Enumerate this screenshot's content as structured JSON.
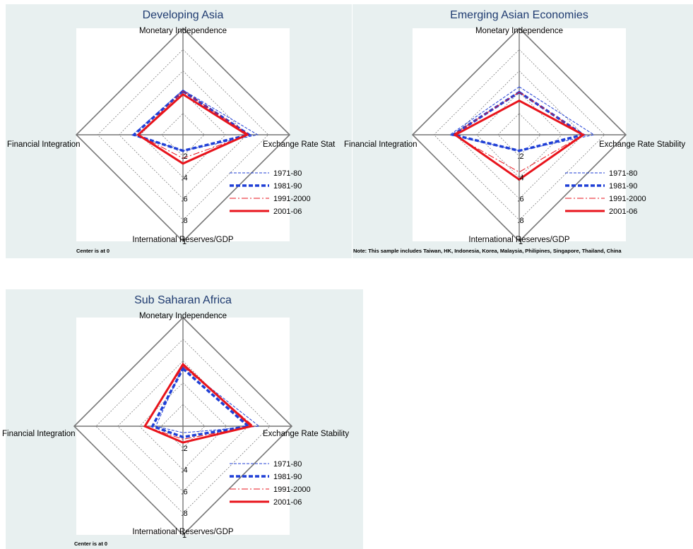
{
  "colors": {
    "panel_bg": "#e8f0f0",
    "blue": "#1f3fd6",
    "red": "#e8141c"
  },
  "chart_data": [
    {
      "type": "radar",
      "title": "Developing Asia",
      "axes": [
        "Monetary Independence",
        "Exchange Rate Stat",
        "International Reserves/GDP",
        "Financial Integration"
      ],
      "ticks": [
        ".2",
        ".4",
        ".6",
        ".8",
        "1"
      ],
      "range": [
        0,
        1
      ],
      "note": "Center is at 0",
      "legend": [
        "1971-80",
        "1981-90",
        "1991-2000",
        "2001-06"
      ],
      "series": [
        {
          "name": "1971-80",
          "values": [
            0.42,
            0.7,
            0.15,
            0.47
          ]
        },
        {
          "name": "1981-90",
          "values": [
            0.41,
            0.62,
            0.15,
            0.46
          ]
        },
        {
          "name": "1991-2000",
          "values": [
            0.41,
            0.62,
            0.22,
            0.42
          ]
        },
        {
          "name": "2001-06",
          "values": [
            0.38,
            0.6,
            0.27,
            0.42
          ]
        }
      ]
    },
    {
      "type": "radar",
      "title": "Emerging Asian Economies",
      "axes": [
        "Monetary Independence",
        "Exchange Rate Stability",
        "International Reserves/GDP",
        "Financial Integration"
      ],
      "ticks": [
        ".2",
        ".4",
        ".6",
        ".8",
        "1"
      ],
      "range": [
        0,
        1
      ],
      "note": "Note: This sample includes Taiwan, HK, Indonesia, Korea, Malaysia, Philipines, Singapore, Thailand, China",
      "legend": [
        "1971-80",
        "1981-90",
        "1991-2000",
        "2001-06"
      ],
      "series": [
        {
          "name": "1971-80",
          "values": [
            0.45,
            0.7,
            0.15,
            0.65
          ]
        },
        {
          "name": "1981-90",
          "values": [
            0.4,
            0.6,
            0.15,
            0.62
          ]
        },
        {
          "name": "1991-2000",
          "values": [
            0.4,
            0.6,
            0.35,
            0.62
          ]
        },
        {
          "name": "2001-06",
          "values": [
            0.32,
            0.6,
            0.42,
            0.6
          ]
        }
      ]
    },
    {
      "type": "radar",
      "title": "Sub Saharan Africa",
      "axes": [
        "Monetary Independence",
        "Exchange Rate Stability",
        "International Reserves/GDP",
        "Financial Integration"
      ],
      "ticks": [
        ".2",
        ".4",
        ".6",
        ".8",
        "1"
      ],
      "range": [
        0,
        1
      ],
      "note": "Center is at 0",
      "legend": [
        "1971-80",
        "1981-90",
        "1991-2000",
        "2001-06"
      ],
      "series": [
        {
          "name": "1971-80",
          "values": [
            0.55,
            0.7,
            0.06,
            0.25
          ]
        },
        {
          "name": "1981-90",
          "values": [
            0.53,
            0.6,
            0.1,
            0.28
          ]
        },
        {
          "name": "1991-2000",
          "values": [
            0.55,
            0.65,
            0.12,
            0.35
          ]
        },
        {
          "name": "2001-06",
          "values": [
            0.57,
            0.63,
            0.15,
            0.35
          ]
        }
      ]
    }
  ]
}
